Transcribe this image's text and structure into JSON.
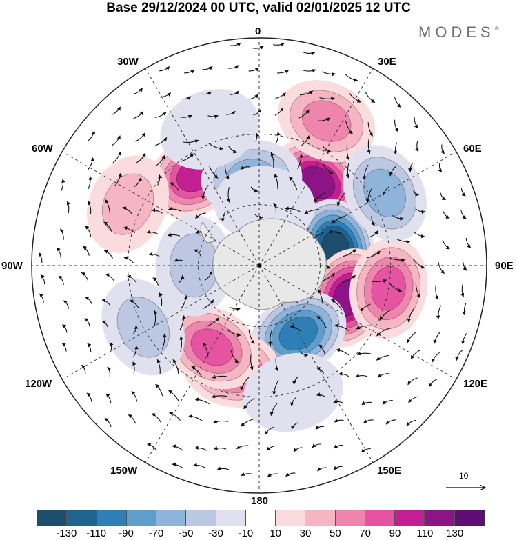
{
  "title": "Base 29/12/2024 00 UTC, valid 02/01/2025 12 UTC",
  "brand": "MODES",
  "brand_mark": "®",
  "longitude_labels": {
    "top": "0",
    "top_left": "30W",
    "top_right": "30E",
    "upper_left": "60W",
    "upper_right": "60E",
    "left": "90W",
    "right": "90E",
    "lower_left": "120W",
    "lower_right": "120E",
    "bottom_left": "150W",
    "bottom_right": "150E",
    "bottom": "180"
  },
  "reference_vector": {
    "label": "10"
  },
  "colorbar": {
    "colors": [
      "#1d4e6b",
      "#1f638f",
      "#2e7fb5",
      "#5f9ecb",
      "#8fb4d9",
      "#bcc7e2",
      "#e0e0ef",
      "#ffffff",
      "#fbdcde",
      "#f6b5c2",
      "#ef85ad",
      "#e554a1",
      "#c21f92",
      "#8c1486",
      "#5e0e73"
    ],
    "tick_labels": [
      "-130",
      "-110",
      "-90",
      "-70",
      "-50",
      "-30",
      "-10",
      "10",
      "30",
      "50",
      "70",
      "90",
      "110",
      "130"
    ]
  },
  "map": {
    "projection": "south polar stereographic",
    "field_anomalies": [
      {
        "lon": 35,
        "lat": -42,
        "value": 125
      },
      {
        "lon": 78,
        "lat": -52,
        "value": -135
      },
      {
        "lon": 110,
        "lat": -45,
        "value": 125
      },
      {
        "lon": 100,
        "lat": -30,
        "value": 70
      },
      {
        "lon": 150,
        "lat": -52,
        "value": -100
      },
      {
        "lon": -165,
        "lat": -40,
        "value": 80
      },
      {
        "lon": -150,
        "lat": -45,
        "value": 70
      },
      {
        "lon": -35,
        "lat": -38,
        "value": 95
      },
      {
        "lon": -5,
        "lat": -48,
        "value": -65
      },
      {
        "lon": -90,
        "lat": -58,
        "value": -40
      },
      {
        "lon": -118,
        "lat": -30,
        "value": -45
      },
      {
        "lon": 25,
        "lat": -20,
        "value": 50
      },
      {
        "lon": -65,
        "lat": -25,
        "value": 40
      },
      {
        "lon": 5,
        "lat": -60,
        "value": -20
      },
      {
        "lon": 60,
        "lat": -25,
        "value": -55
      },
      {
        "lon": 165,
        "lat": -30,
        "value": -25
      },
      {
        "lon": -20,
        "lat": -25,
        "value": -20
      }
    ]
  }
}
